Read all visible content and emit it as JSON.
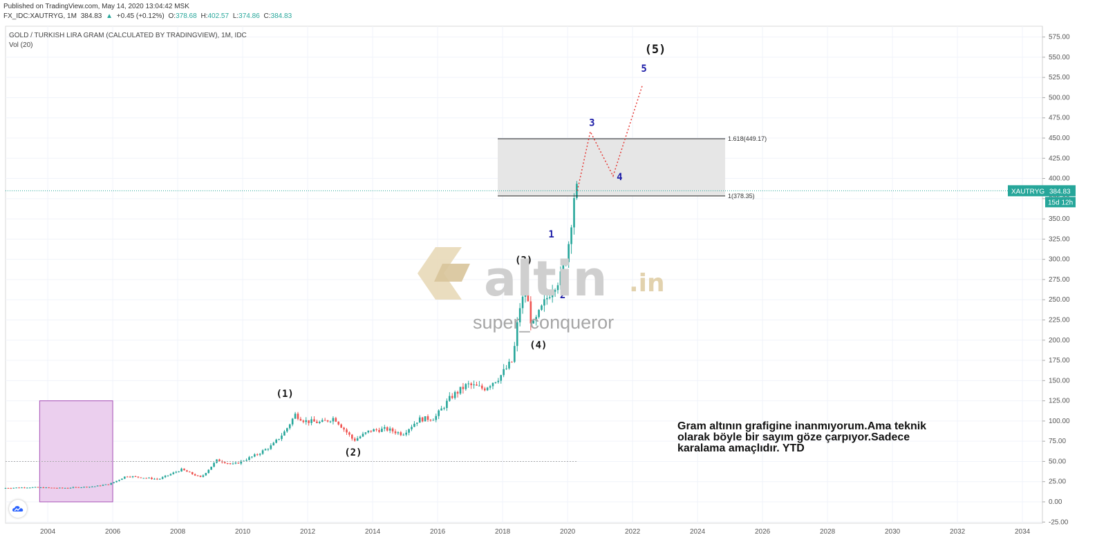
{
  "header": {
    "published": "Published on TradingView.com, May 14, 2020 13:04:42 MSK",
    "symbol": "FX_IDC:XAUTRYG, 1M",
    "last": "384.83",
    "change_arrow": "▲",
    "change": "+0.45 (+0.12%)",
    "o_label": "O:",
    "o": "378.68",
    "h_label": "H:",
    "h": "402.57",
    "l_label": "L:",
    "l": "374.86",
    "c_label": "C:",
    "c": "384.83"
  },
  "chart_title": "GOLD / TURKISH LIRA GRAM (CALCULATED BY TRADINGVIEW), 1M, IDC",
  "volume_label": "Vol (20)",
  "price_badge": {
    "symbol": "XAUTRYG",
    "price": "384.83",
    "countdown": "15d 12h"
  },
  "colors": {
    "up": "#26a69a",
    "down": "#ef5350",
    "accent": "#26a69a",
    "wave_blue": "#1a1aa6",
    "highlight_box": "#ebcfee"
  },
  "watermark": {
    "logo_text": "altin",
    "logo_suffix": ".in",
    "author": "super_conqueror"
  },
  "annotation": "Gram altının grafigine inanmıyorum.Ama teknik olarak böyle bir sayım göze çarpıyor.Sadece karalama amaçlıdır. YTD",
  "icons": [
    "tradingview-cloud-icon"
  ],
  "chart_data": {
    "type": "candlestick",
    "x_axis": {
      "labels": [
        "2004",
        "2006",
        "2008",
        "2010",
        "2012",
        "2014",
        "2016",
        "2018",
        "2020",
        "2022",
        "2024",
        "2026",
        "2028",
        "2030",
        "2032",
        "2034"
      ]
    },
    "y_axis": {
      "range": [
        -25,
        587
      ],
      "ticks": [
        "575.00",
        "550.00",
        "525.00",
        "500.00",
        "475.00",
        "450.00",
        "425.00",
        "400.00",
        "375.00",
        "350.00",
        "325.00",
        "300.00",
        "275.00",
        "250.00",
        "225.00",
        "200.00",
        "175.00",
        "150.00",
        "125.00",
        "100.00",
        "75.00",
        "50.00",
        "25.00",
        "0.00",
        "-25.00"
      ]
    },
    "price_path": [
      [
        2002.7,
        17
      ],
      [
        2003.5,
        18
      ],
      [
        2004.5,
        17
      ],
      [
        2005.5,
        19
      ],
      [
        2006.0,
        22
      ],
      [
        2006.5,
        32
      ],
      [
        2007.5,
        28
      ],
      [
        2008.2,
        40
      ],
      [
        2008.8,
        30
      ],
      [
        2009.3,
        52
      ],
      [
        2009.8,
        46
      ],
      [
        2010.5,
        58
      ],
      [
        2011.0,
        70
      ],
      [
        2011.4,
        88
      ],
      [
        2011.7,
        108
      ],
      [
        2012.0,
        100
      ],
      [
        2012.5,
        98
      ],
      [
        2012.9,
        104
      ],
      [
        2013.5,
        76
      ],
      [
        2014.0,
        88
      ],
      [
        2014.5,
        90
      ],
      [
        2015.0,
        84
      ],
      [
        2015.5,
        102
      ],
      [
        2016.0,
        104
      ],
      [
        2016.5,
        130
      ],
      [
        2017.0,
        145
      ],
      [
        2017.5,
        140
      ],
      [
        2018.0,
        155
      ],
      [
        2018.4,
        175
      ],
      [
        2018.6,
        240
      ],
      [
        2018.8,
        260
      ],
      [
        2019.0,
        215
      ],
      [
        2019.3,
        240
      ],
      [
        2019.6,
        265
      ],
      [
        2019.9,
        280
      ],
      [
        2020.1,
        315
      ],
      [
        2020.3,
        384.83
      ]
    ],
    "fib_levels": [
      {
        "label": "1.618(449.17)",
        "value": 449.17
      },
      {
        "label": "1(378.35)",
        "value": 378.35
      }
    ],
    "reference_line": 50,
    "projection": [
      [
        2020.3,
        384.83
      ],
      [
        2020.7,
        458
      ],
      [
        2021.4,
        403
      ],
      [
        2022.3,
        515
      ]
    ],
    "wave_labels": [
      {
        "text": "(1)",
        "x": 2011.3,
        "y": 130,
        "style": "major"
      },
      {
        "text": "(2)",
        "x": 2013.4,
        "y": 57,
        "style": "major"
      },
      {
        "text": "(3)",
        "x": 2018.65,
        "y": 295,
        "style": "major"
      },
      {
        "text": "(4)",
        "x": 2019.1,
        "y": 190,
        "style": "major"
      },
      {
        "text": "(5)",
        "x": 2022.7,
        "y": 555,
        "style": "major-large"
      },
      {
        "text": "1",
        "x": 2019.5,
        "y": 327,
        "style": "minor"
      },
      {
        "text": "2",
        "x": 2019.85,
        "y": 252,
        "style": "minor"
      },
      {
        "text": "3",
        "x": 2020.75,
        "y": 465,
        "style": "minor"
      },
      {
        "text": "4",
        "x": 2021.6,
        "y": 398,
        "style": "minor"
      },
      {
        "text": "5",
        "x": 2022.35,
        "y": 532,
        "style": "minor"
      }
    ],
    "highlight_box": {
      "x0": 2003.75,
      "x1": 2006.0,
      "y0": 0,
      "y1": 125
    },
    "zone_box": {
      "x0": 2017.85,
      "x1": 2024.85,
      "y0": 378.35,
      "y1": 449.17
    }
  }
}
